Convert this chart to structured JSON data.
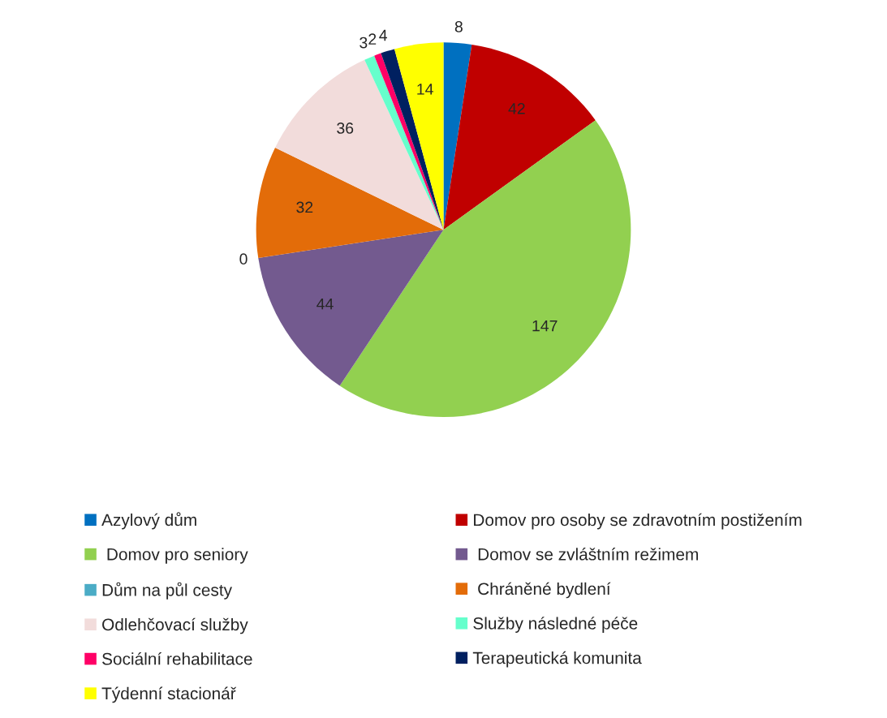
{
  "chart_data": {
    "type": "pie",
    "categories": [
      "Azylový dům",
      "Domov pro osoby se zdravotním postižením",
      " Domov pro seniory",
      " Domov se zvláštním režimem",
      "Dům na půl cesty",
      " Chráněné bydlení",
      "Odlehčovací služby",
      "Služby následné péče",
      "Sociální rehabilitace",
      "Terapeutická komunita",
      "Týdenní stacionář"
    ],
    "values": [
      8,
      42,
      147,
      44,
      0,
      32,
      36,
      3,
      2,
      4,
      14
    ],
    "colors": [
      "#0070c0",
      "#c00000",
      "#92d050",
      "#735a8f",
      "#4bacc6",
      "#e36c09",
      "#f2dcdb",
      "#66ffcc",
      "#ff0066",
      "#002060",
      "#ffff00"
    ],
    "value_labels": [
      "8",
      "42",
      "147",
      "44",
      "0",
      "32",
      "36",
      "3",
      "2",
      "4",
      "14"
    ],
    "legend": "bottom"
  }
}
